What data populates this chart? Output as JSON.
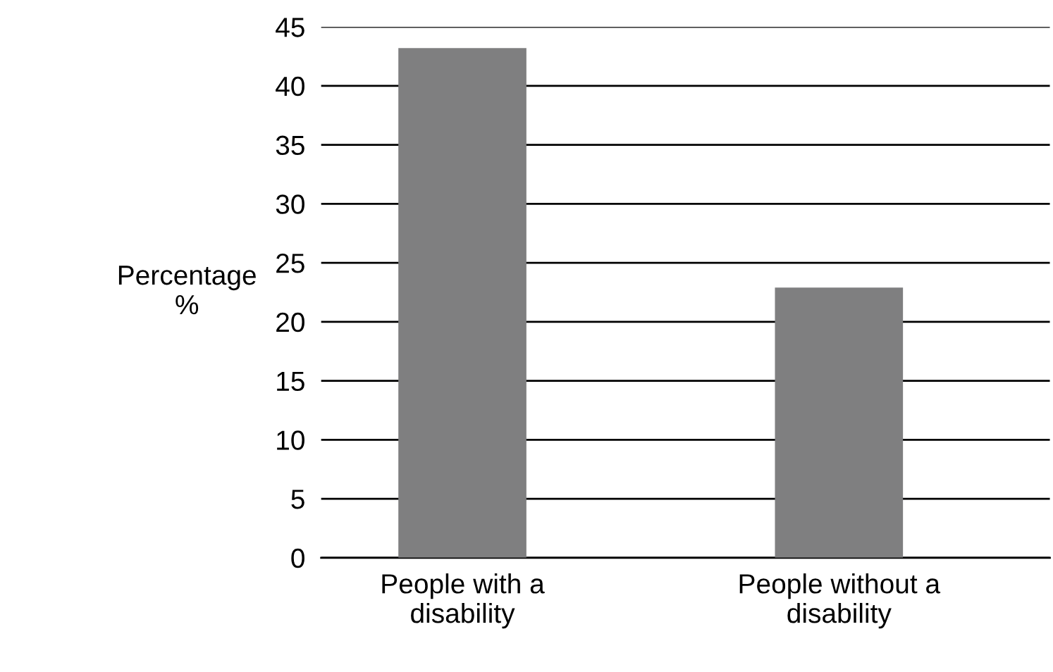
{
  "chart_data": {
    "type": "bar",
    "ylabel": "Percentage\n%",
    "categories": [
      "People with a\ndisability",
      "People without a\ndisability"
    ],
    "values": [
      43.2,
      22.9
    ],
    "color": "#7f7f80",
    "ylim": [
      0,
      45
    ],
    "yticks": [
      0,
      5,
      10,
      15,
      20,
      25,
      30,
      35,
      40,
      45
    ],
    "grid": "y",
    "legend": false
  }
}
